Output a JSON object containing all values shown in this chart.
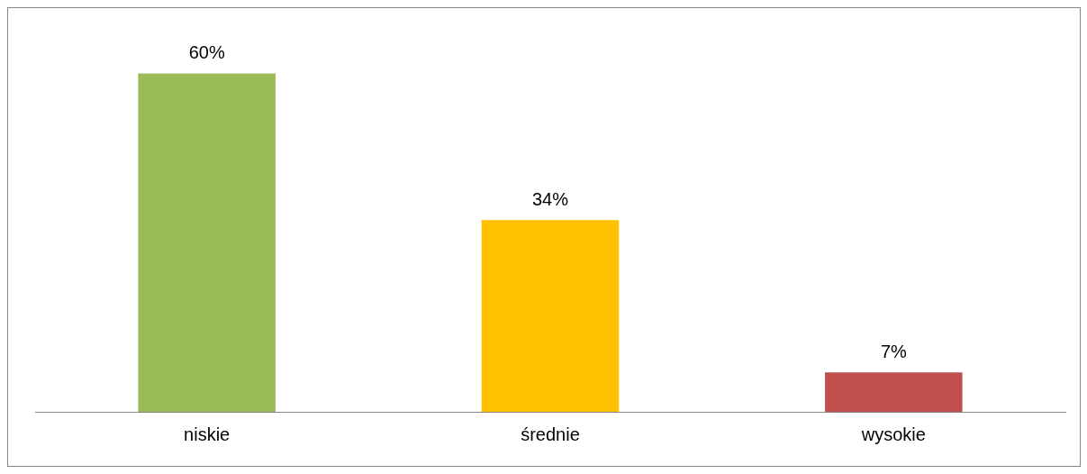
{
  "chart_data": {
    "type": "bar",
    "categories": [
      "niskie",
      "średnie",
      "wysokie"
    ],
    "values": [
      60,
      34,
      7
    ],
    "colors": [
      "#9bbb59",
      "#ffc000",
      "#c0504d"
    ],
    "value_labels": [
      "60%",
      "34%",
      "7%"
    ],
    "tick_labels": "x",
    "grid": false,
    "legend": false
  }
}
